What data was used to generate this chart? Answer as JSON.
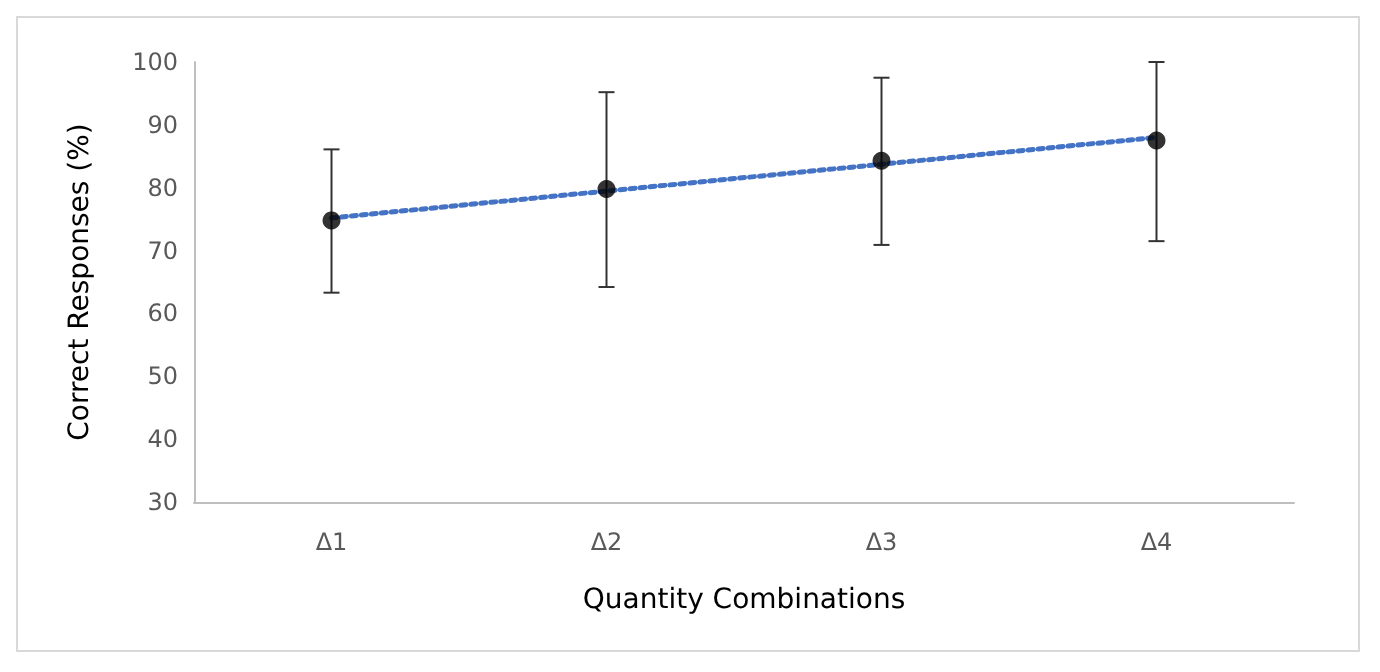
{
  "chart_data": {
    "type": "scatter",
    "xlabel": "Quantity Combinations",
    "ylabel": "Correct Responses (%)",
    "categories": [
      "Δ1",
      "Δ2",
      "Δ3",
      "Δ4"
    ],
    "series": [
      {
        "color": "#000000",
        "marker": "circle",
        "values": [
          74.8,
          79.8,
          84.3,
          87.5
        ],
        "errors": [
          [
            63.3,
            86.1
          ],
          [
            64.2,
            95.2
          ],
          [
            70.9,
            97.5
          ],
          [
            71.5,
            100
          ]
        ]
      },
      {
        "type": "line",
        "color": "#4472c4",
        "line_style": "dotted",
        "marker": "none",
        "x": [
          "Δ1",
          "Δ4"
        ],
        "values": [
          75.2,
          88.0
        ]
      }
    ],
    "ylim": [
      30,
      100
    ],
    "yticks": [
      30,
      40,
      50,
      60,
      70,
      80,
      90,
      100
    ],
    "grid": false
  }
}
